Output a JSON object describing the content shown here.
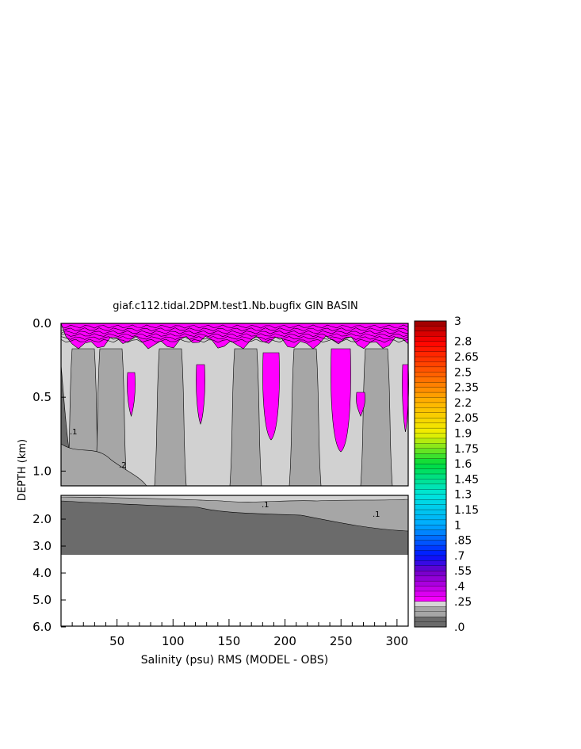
{
  "chart_data": {
    "type": "heatmap",
    "title": "giaf.c112.tidal.2DPM.test1.Nb.bugfix GIN BASIN",
    "xlabel": "Salinity (psu) RMS (MODEL - OBS)",
    "ylabel": "DEPTH (km)",
    "xlim": [
      0,
      310
    ],
    "x_ticks": [
      "50",
      "100",
      "150",
      "200",
      "250",
      "300"
    ],
    "upper_panel": {
      "ylim": [
        0.0,
        1.1
      ],
      "y_ticks": [
        "0.0",
        "0.5",
        "1.0"
      ]
    },
    "lower_panel": {
      "ylim": [
        1.1,
        6.0
      ],
      "y_ticks": [
        "2.0",
        "3.0",
        "4.0",
        "5.0",
        "6.0"
      ]
    },
    "colorbar": {
      "min": 0,
      "max": 3,
      "labels": [
        "3",
        "2.8",
        "2.65",
        "2.5",
        "2.35",
        "2.2",
        "2.05",
        "1.9",
        "1.75",
        "1.6",
        "1.45",
        "1.3",
        "1.15",
        "1",
        ".85",
        ".7",
        ".55",
        ".4",
        ".25",
        ".0"
      ],
      "label_values": [
        3,
        2.8,
        2.65,
        2.5,
        2.35,
        2.2,
        2.05,
        1.9,
        1.75,
        1.6,
        1.45,
        1.3,
        1.15,
        1.0,
        0.85,
        0.7,
        0.55,
        0.4,
        0.25,
        0.0
      ]
    },
    "contour_labels": [
      ".1",
      ".2",
      ".1",
      ".1"
    ],
    "fill_colors": {
      "level_0": "#6b6b6b",
      "level_1": "#a6a6a6",
      "level_2": "#d1d1d1",
      "magenta": "#ff00ff"
    }
  }
}
